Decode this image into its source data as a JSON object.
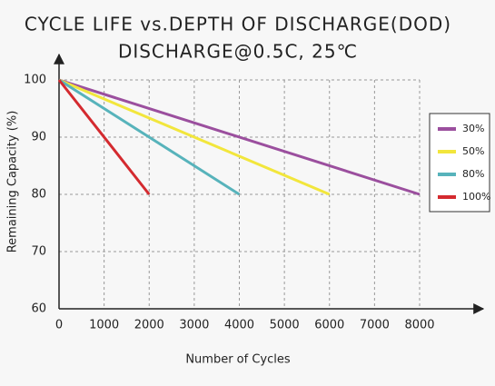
{
  "chart_data": {
    "type": "line",
    "title": "CYCLE LIFE vs.DEPTH OF DISCHARGE(DOD)",
    "subtitle": "DISCHARGE@0.5C, 25℃",
    "x_label": "Number of Cycles",
    "y_label": "Remaining Capacity (%)",
    "series": [
      {
        "name": "30%",
        "color": "#9b4f9e",
        "x": [
          0,
          8000
        ],
        "values": [
          100,
          80
        ]
      },
      {
        "name": "50%",
        "color": "#f2e63c",
        "x": [
          0,
          6000
        ],
        "values": [
          100,
          80
        ]
      },
      {
        "name": "80%",
        "color": "#57b3bb",
        "x": [
          0,
          4000
        ],
        "values": [
          100,
          80
        ]
      },
      {
        "name": "100%",
        "color": "#d42a2f",
        "x": [
          0,
          2000
        ],
        "values": [
          100,
          80
        ]
      }
    ],
    "xlim": [
      0,
      8000
    ],
    "xticks": [
      0,
      1000,
      2000,
      3000,
      4000,
      5000,
      6000,
      7000,
      8000
    ],
    "ylim": [
      60,
      100
    ],
    "yticks": [
      60,
      70,
      80,
      90,
      100
    ],
    "grid": true,
    "legend": "right"
  }
}
